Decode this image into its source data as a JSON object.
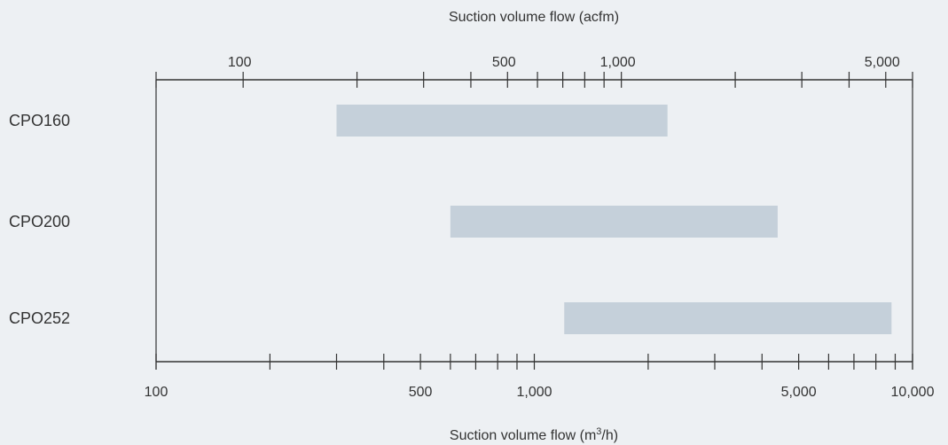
{
  "chart_data": {
    "type": "bar",
    "orientation": "horizontal-range",
    "x_scale": "log",
    "xlim": [
      100,
      10000
    ],
    "top_axis": {
      "label": "Suction volume flow (acfm)",
      "tick_values": [
        100,
        200,
        300,
        400,
        500,
        600,
        700,
        800,
        900,
        1000,
        2000,
        3000,
        4000,
        5000
      ],
      "tick_labels": [
        {
          "value": 100,
          "text": "100"
        },
        {
          "value": 500,
          "text": "500"
        },
        {
          "value": 1000,
          "text": "1,000"
        },
        {
          "value": 5000,
          "text": "5,000"
        }
      ],
      "m3h_per_acfm": 1.699
    },
    "bottom_axis": {
      "label_prefix": "Suction volume flow (m",
      "label_sup": "3",
      "label_suffix": "/h)",
      "tick_values": [
        100,
        200,
        300,
        400,
        500,
        600,
        700,
        800,
        900,
        1000,
        2000,
        3000,
        4000,
        5000,
        6000,
        7000,
        8000,
        9000,
        10000
      ],
      "tick_labels": [
        {
          "value": 100,
          "text": "100"
        },
        {
          "value": 500,
          "text": "500"
        },
        {
          "value": 1000,
          "text": "1,000"
        },
        {
          "value": 5000,
          "text": "5,000"
        },
        {
          "value": 10000,
          "text": "10,000"
        }
      ]
    },
    "series": [
      {
        "name": "CPO160",
        "start": 300,
        "end": 2250
      },
      {
        "name": "CPO200",
        "start": 600,
        "end": 4400
      },
      {
        "name": "CPO252",
        "start": 1200,
        "end": 8800
      }
    ],
    "grid": false,
    "colors": {
      "bar": "#c5d0da",
      "axis": "#333333",
      "background": "#edf0f3"
    }
  }
}
